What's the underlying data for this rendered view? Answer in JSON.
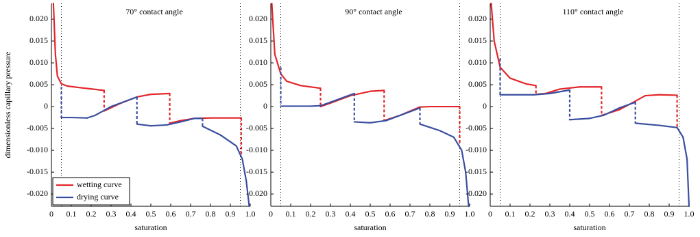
{
  "chart_data": [
    {
      "type": "line",
      "title": "70° contact angle",
      "xlabel": "saturation",
      "ylabel": "dimensionless capillary pressure",
      "xlim": [
        0,
        1
      ],
      "ylim": [
        -0.0228,
        0.0236
      ],
      "xticks": [
        0,
        0.1,
        0.2,
        0.3,
        0.4,
        0.5,
        0.6,
        0.7,
        0.8,
        0.9,
        {
          "value": 1,
          "label": "1.0"
        }
      ],
      "yticks": [
        {
          "value": -0.02,
          "label": "-0.020"
        },
        -0.015,
        {
          "value": -0.01,
          "label": "-0.010"
        },
        -0.005,
        0,
        0.005,
        {
          "value": 0.01,
          "label": "0.010"
        },
        0.015,
        {
          "value": 0.02,
          "label": "0.020"
        }
      ],
      "vlines": [
        0.05,
        0.95
      ],
      "legend": "lower left",
      "series": [
        {
          "name": "wetting curve",
          "color": "#e3262b",
          "x": [
            0.01,
            0.02,
            0.03,
            0.05,
            0.08,
            0.15,
            0.265,
            0.265,
            0.35,
            0.43,
            0.5,
            0.595,
            0.595,
            0.65,
            0.72,
            0.8,
            0.955,
            0.955
          ],
          "values": [
            0.0236,
            0.012,
            0.007,
            0.0052,
            0.0047,
            0.0043,
            0.0037,
            -0.001,
            0.0008,
            0.0022,
            0.0028,
            0.003,
            -0.0038,
            -0.0032,
            -0.0027,
            -0.0026,
            -0.0026,
            -0.011
          ]
        },
        {
          "name": "drying curve",
          "color": "#3a4fa0",
          "x": [
            0.05,
            0.05,
            0.1,
            0.18,
            0.22,
            0.3,
            0.43,
            0.43,
            0.5,
            0.58,
            0.65,
            0.72,
            0.76,
            0.76,
            0.85,
            0.93,
            0.96,
            0.98,
            0.995
          ],
          "values": [
            0.0045,
            -0.0025,
            -0.0025,
            -0.0026,
            -0.002,
            0,
            0.0022,
            -0.004,
            -0.0044,
            -0.0042,
            -0.0035,
            -0.0027,
            -0.0027,
            -0.0045,
            -0.0065,
            -0.009,
            -0.012,
            -0.017,
            -0.0228
          ]
        }
      ]
    },
    {
      "type": "line",
      "title": "90° contact angle",
      "xlabel": "saturation",
      "xlim": [
        0,
        1
      ],
      "ylim": [
        -0.0228,
        0.0236
      ],
      "xticks": [
        0,
        0.1,
        0.2,
        0.3,
        0.4,
        0.5,
        0.6,
        0.7,
        0.8,
        0.9,
        {
          "value": 1,
          "label": "1.0"
        }
      ],
      "yticks": [
        {
          "value": -0.02,
          "label": "-0.020"
        },
        -0.015,
        {
          "value": -0.01,
          "label": "-0.010"
        },
        -0.005,
        0,
        0.005,
        {
          "value": 0.01,
          "label": "0.010"
        },
        0.015,
        {
          "value": 0.02,
          "label": "0.020"
        }
      ],
      "vlines": [
        0.05,
        0.95
      ],
      "series": [
        {
          "color": "#e3262b",
          "x": [
            0.005,
            0.02,
            0.05,
            0.08,
            0.15,
            0.25,
            0.25,
            0.3,
            0.4,
            0.5,
            0.57,
            0.57,
            0.65,
            0.75,
            0.8,
            0.95,
            0.95
          ],
          "values": [
            0.0236,
            0.012,
            0.0075,
            0.0058,
            0.0048,
            0.0042,
            0,
            0.0008,
            0.0025,
            0.0035,
            0.0037,
            -0.0032,
            -0.002,
            -0.0001,
            0,
            0,
            -0.0085
          ]
        },
        {
          "color": "#3a4fa0",
          "x": [
            0.05,
            0.05,
            0.1,
            0.2,
            0.25,
            0.3,
            0.42,
            0.42,
            0.5,
            0.58,
            0.68,
            0.75,
            0.75,
            0.85,
            0.92,
            0.96,
            0.98,
            0.995
          ],
          "values": [
            0.009,
            0.0001,
            0.0001,
            0.0001,
            0.0002,
            0.001,
            0.003,
            -0.0035,
            -0.0037,
            -0.0032,
            -0.0015,
            -0.0003,
            -0.004,
            -0.0055,
            -0.007,
            -0.01,
            -0.015,
            -0.0228
          ]
        }
      ]
    },
    {
      "type": "line",
      "title": "110° contact angle",
      "xlabel": "saturation",
      "xlim": [
        0,
        1
      ],
      "ylim": [
        -0.0228,
        0.0236
      ],
      "xticks": [
        0,
        0.1,
        0.2,
        0.3,
        0.4,
        0.5,
        0.6,
        0.7,
        0.8,
        0.9,
        {
          "value": 1,
          "label": "1.0"
        }
      ],
      "yticks": [
        {
          "value": -0.02,
          "label": "-0.020"
        },
        -0.015,
        {
          "value": -0.01,
          "label": "-0.010"
        },
        -0.005,
        0,
        0.005,
        {
          "value": 0.01,
          "label": "0.010"
        },
        0.015,
        {
          "value": 0.02,
          "label": "0.020"
        }
      ],
      "vlines": [
        0.05,
        0.95
      ],
      "series": [
        {
          "color": "#e3262b",
          "x": [
            0.005,
            0.02,
            0.05,
            0.1,
            0.18,
            0.23,
            0.23,
            0.28,
            0.35,
            0.45,
            0.56,
            0.56,
            0.65,
            0.72,
            0.78,
            0.85,
            0.94,
            0.94
          ],
          "values": [
            0.0236,
            0.015,
            0.009,
            0.0065,
            0.0052,
            0.0048,
            0.0028,
            0.003,
            0.004,
            0.0045,
            0.0045,
            -0.002,
            -0.0007,
            0.001,
            0.0025,
            0.0027,
            0.0026,
            -0.0048
          ]
        },
        {
          "color": "#3a4fa0",
          "x": [
            0.05,
            0.05,
            0.15,
            0.22,
            0.3,
            0.4,
            0.4,
            0.5,
            0.57,
            0.65,
            0.73,
            0.73,
            0.85,
            0.94,
            0.97,
            0.99,
            1
          ],
          "values": [
            0.011,
            0.0027,
            0.0027,
            0.0027,
            0.003,
            0.0038,
            -0.003,
            -0.0027,
            -0.002,
            -0.0003,
            0.001,
            -0.0038,
            -0.0043,
            -0.0048,
            -0.007,
            -0.012,
            -0.0228
          ]
        }
      ]
    }
  ]
}
